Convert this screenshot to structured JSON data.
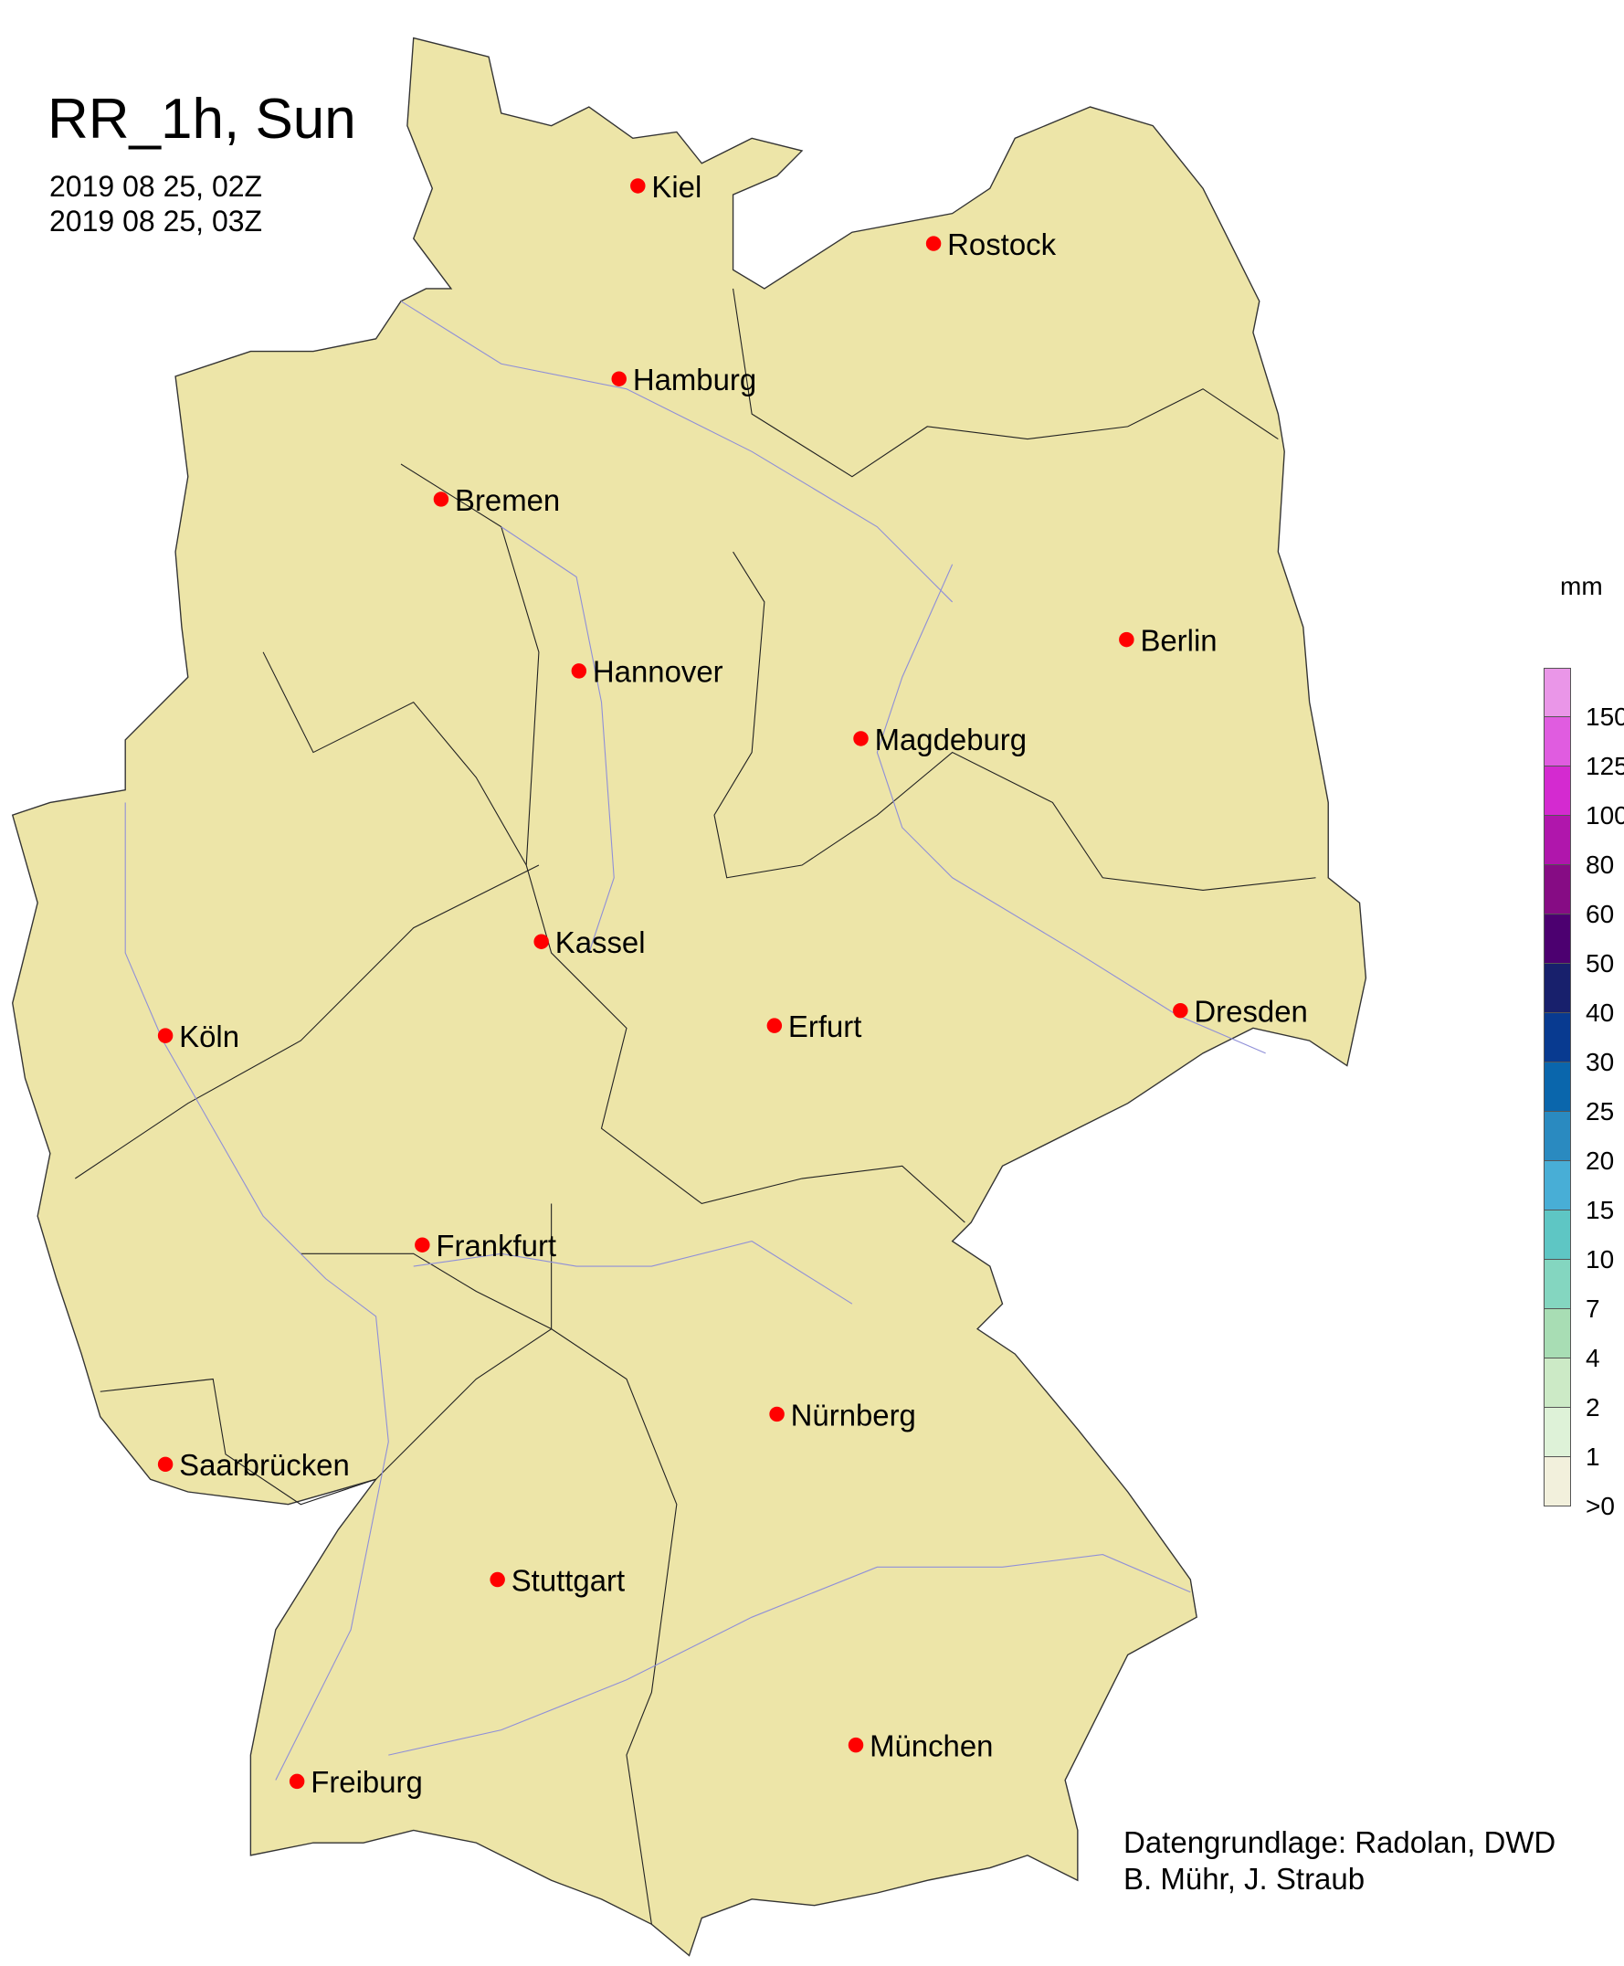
{
  "title": "RR_1h, Sun",
  "time_start": "2019 08 25, 02Z",
  "time_end": "2019 08 25, 03Z",
  "legend": {
    "unit": "mm",
    "labels": [
      "150",
      "125",
      "100",
      "80",
      "60",
      "50",
      "40",
      "30",
      "25",
      "20",
      "15",
      "10",
      "7",
      "4",
      "2",
      "1",
      ">0"
    ],
    "colors": [
      "#ea96e8",
      "#e05ce0",
      "#d42ad0",
      "#b016ac",
      "#860c84",
      "#4c0070",
      "#18206c",
      "#083a90",
      "#0a66ac",
      "#2a8ac0",
      "#48aed6",
      "#5ec6c4",
      "#84d6c0",
      "#a8ddb4",
      "#cceac6",
      "#def2d8",
      "#f2f0dc"
    ]
  },
  "land_color": "#ede5a8",
  "cities": [
    {
      "name": "Kiel"
    },
    {
      "name": "Rostock"
    },
    {
      "name": "Hamburg"
    },
    {
      "name": "Bremen"
    },
    {
      "name": "Berlin"
    },
    {
      "name": "Hannover"
    },
    {
      "name": "Magdeburg"
    },
    {
      "name": "Kassel"
    },
    {
      "name": "Köln"
    },
    {
      "name": "Erfurt"
    },
    {
      "name": "Dresden"
    },
    {
      "name": "Frankfurt"
    },
    {
      "name": "Nürnberg"
    },
    {
      "name": "Saarbrücken"
    },
    {
      "name": "Stuttgart"
    },
    {
      "name": "München"
    },
    {
      "name": "Freiburg"
    }
  ],
  "credits": [
    "Datengrundlage: Radolan, DWD",
    "B. Mühr, J. Straub"
  ]
}
